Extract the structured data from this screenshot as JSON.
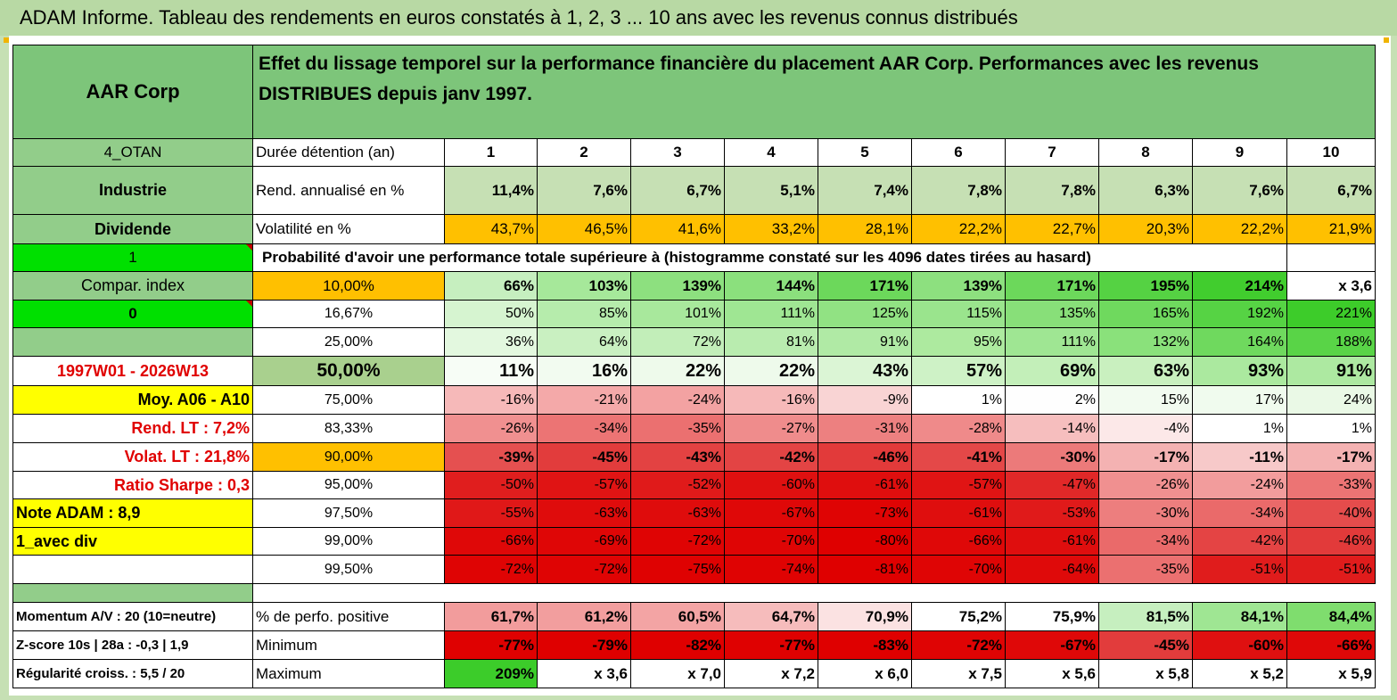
{
  "title": "ADAM Informe. Tableau des rendements en euros constatés à 1, 2, 3 ... 10 ans avec les revenus connus distribués",
  "header": {
    "company": "AAR Corp",
    "description": "Effet du lissage temporel sur la performance financière du placement AAR Corp. Performances avec les revenus DISTRIBUES depuis janv 1997."
  },
  "side": {
    "code": "4_OTAN",
    "sector": "Industrie",
    "type": "Dividende",
    "flag1": "1",
    "compar": "Compar. index",
    "flag0": "0",
    "period": "1997W01 - 2026W13",
    "moy": "Moy. A06 - A10",
    "rend_lt": "Rend. LT :   7,2%",
    "volat_lt": "Volat. LT :   21,8%",
    "sharpe": "Ratio Sharpe :    0,3",
    "note": "Note ADAM : 8,9",
    "div": "1_avec div",
    "momentum": "Momentum A/V : 20 (10=neutre)",
    "zscore": "Z-score 10s | 28a : -0,3 | 1,9",
    "regularite": "Régularité croiss. : 5,5 / 20"
  },
  "durations": {
    "label": "Durée détention (an)",
    "values": [
      "1",
      "2",
      "3",
      "4",
      "5",
      "6",
      "7",
      "8",
      "9",
      "10"
    ]
  },
  "rend": {
    "label": "Rend. annualisé en %",
    "values": [
      "11,4%",
      "7,6%",
      "6,7%",
      "5,1%",
      "7,4%",
      "7,8%",
      "7,8%",
      "6,3%",
      "7,6%",
      "6,7%"
    ]
  },
  "vol": {
    "label": "Volatilité en %",
    "values": [
      "43,7%",
      "46,5%",
      "41,6%",
      "33,2%",
      "28,1%",
      "22,2%",
      "22,7%",
      "20,3%",
      "22,2%",
      "21,9%"
    ]
  },
  "prob_title": "Probabilité d'avoir une performance totale supérieure à (histogramme constaté sur les 4096 dates tirées au hasard)",
  "quantiles": [
    {
      "label": "10,00%",
      "values": [
        "66%",
        "103%",
        "139%",
        "144%",
        "171%",
        "139%",
        "171%",
        "195%",
        "214%",
        "x 3,6"
      ],
      "bg": [
        "#c6efbf",
        "#a6e89a",
        "#8de07f",
        "#8be07d",
        "#6cd85b",
        "#8de07f",
        "#6cd85b",
        "#55d243",
        "#41cd2e",
        "#ffffff"
      ]
    },
    {
      "label": "16,67%",
      "values": [
        "50%",
        "85%",
        "101%",
        "111%",
        "125%",
        "115%",
        "135%",
        "165%",
        "192%",
        "221%"
      ],
      "bg": [
        "#d6f4d0",
        "#b6ecac",
        "#a8e89c",
        "#9fe693",
        "#91e283",
        "#9ae48d",
        "#88df79",
        "#6fd95e",
        "#56d344",
        "#3dcc2a"
      ]
    },
    {
      "label": "25,00%",
      "values": [
        "36%",
        "64%",
        "72%",
        "81%",
        "91%",
        "95%",
        "111%",
        "132%",
        "164%",
        "188%"
      ],
      "bg": [
        "#e3f8df",
        "#c9f0c1",
        "#c2eeb9",
        "#b9ecaf",
        "#b0eaa5",
        "#adea9f",
        "#9fe693",
        "#8ae17b",
        "#6fd95e",
        "#59d447"
      ]
    },
    {
      "label": "50,00%",
      "values": [
        "11%",
        "16%",
        "22%",
        "22%",
        "43%",
        "57%",
        "69%",
        "63%",
        "93%",
        "91%"
      ],
      "bg": [
        "#f7fdf6",
        "#f2fbf0",
        "#eefaeb",
        "#eefaeb",
        "#dbf5d5",
        "#cef2c6",
        "#c3efb9",
        "#c9f0bf",
        "#abe99f",
        "#ade9a1"
      ]
    },
    {
      "label": "75,00%",
      "values": [
        "-16%",
        "-21%",
        "-24%",
        "-16%",
        "-9%",
        "1%",
        "2%",
        "15%",
        "17%",
        "24%"
      ],
      "bg": [
        "#f6b9b9",
        "#f4a9a9",
        "#f3a2a2",
        "#f6b9b9",
        "#f9d4d4",
        "#ffffff",
        "#fefefe",
        "#f2fbf0",
        "#f0fbee",
        "#eaf9e6"
      ]
    },
    {
      "label": "83,33%",
      "values": [
        "-26%",
        "-34%",
        "-35%",
        "-27%",
        "-31%",
        "-28%",
        "-14%",
        "-4%",
        "1%",
        "1%"
      ],
      "bg": [
        "#f09090",
        "#ec7474",
        "#eb7070",
        "#ef8c8c",
        "#ed8080",
        "#ef8a8a",
        "#f6bebe",
        "#fce8e8",
        "#ffffff",
        "#ffffff"
      ]
    },
    {
      "label": "90,00%",
      "values": [
        "-39%",
        "-45%",
        "-43%",
        "-42%",
        "-46%",
        "-41%",
        "-30%",
        "-17%",
        "-11%",
        "-17%"
      ],
      "bg": [
        "#e55050",
        "#e23c3c",
        "#e34242",
        "#e34444",
        "#e23a3a",
        "#e44848",
        "#ec7a7a",
        "#f4b2b2",
        "#f7c9c9",
        "#f4b2b2"
      ]
    },
    {
      "label": "95,00%",
      "values": [
        "-50%",
        "-57%",
        "-52%",
        "-60%",
        "-61%",
        "-57%",
        "-47%",
        "-26%",
        "-24%",
        "-33%"
      ],
      "bg": [
        "#e01e1e",
        "#e01414",
        "#e01a1a",
        "#df1010",
        "#df0e0e",
        "#e01414",
        "#e12828",
        "#f09090",
        "#f29c9c",
        "#ec7474"
      ]
    },
    {
      "label": "97,50%",
      "values": [
        "-55%",
        "-63%",
        "-63%",
        "-67%",
        "-73%",
        "-61%",
        "-53%",
        "-30%",
        "-34%",
        "-40%"
      ],
      "bg": [
        "#e01818",
        "#df0c0c",
        "#df0c0c",
        "#df0808",
        "#df0404",
        "#df0e0e",
        "#e01a1a",
        "#ed7e7e",
        "#ea6a6a",
        "#e54c4c"
      ]
    },
    {
      "label": "99,00%",
      "values": [
        "-66%",
        "-69%",
        "-72%",
        "-70%",
        "-80%",
        "-66%",
        "-61%",
        "-34%",
        "-42%",
        "-46%"
      ],
      "bg": [
        "#df0808",
        "#df0606",
        "#df0404",
        "#df0505",
        "#df0000",
        "#df0808",
        "#df0e0e",
        "#ea6a6a",
        "#e44444",
        "#e23a3a"
      ]
    },
    {
      "label": "99,50%",
      "values": [
        "-72%",
        "-72%",
        "-75%",
        "-74%",
        "-81%",
        "-70%",
        "-64%",
        "-35%",
        "-51%",
        "-51%"
      ],
      "bg": [
        "#df0404",
        "#df0404",
        "#df0202",
        "#df0303",
        "#df0000",
        "#df0505",
        "#df0a0a",
        "#eb7070",
        "#e01c1c",
        "#e01c1c"
      ]
    }
  ],
  "stats": [
    {
      "label": "% de perfo. positive",
      "values": [
        "61,7%",
        "61,2%",
        "60,5%",
        "64,7%",
        "70,9%",
        "75,2%",
        "75,9%",
        "81,5%",
        "84,1%",
        "84,4%"
      ],
      "bg": [
        "#f29c9c",
        "#f29e9e",
        "#f3a4a4",
        "#f6bcbc",
        "#fbe2e2",
        "#ffffff",
        "#ffffff",
        "#c6efbf",
        "#9fe693",
        "#7fdd6e"
      ]
    },
    {
      "label": "Minimum",
      "values": [
        "-77%",
        "-79%",
        "-82%",
        "-77%",
        "-83%",
        "-72%",
        "-67%",
        "-45%",
        "-60%",
        "-66%"
      ],
      "bg": [
        "#df0101",
        "#df0000",
        "#df0000",
        "#df0101",
        "#df0000",
        "#df0404",
        "#df0808",
        "#e23c3c",
        "#df1010",
        "#df0808"
      ]
    },
    {
      "label": "Maximum",
      "values": [
        "209%",
        "x 3,6",
        "x 7,0",
        "x 7,2",
        "x 6,0",
        "x 7,5",
        "x 5,6",
        "x 5,8",
        "x 5,2",
        "x 5,9"
      ],
      "bg": [
        "#3ccc2a",
        "#ffffff",
        "#ffffff",
        "#ffffff",
        "#ffffff",
        "#ffffff",
        "#ffffff",
        "#ffffff",
        "#ffffff",
        "#ffffff"
      ]
    }
  ],
  "colors": {
    "header_green": "#7dc57a",
    "label_green": "#92cd8a",
    "bright_green": "#00e000",
    "yellow": "#ffff00",
    "orange": "#ffc000",
    "rend_bg": "#c6e0b4",
    "red_text": "#e00000"
  }
}
